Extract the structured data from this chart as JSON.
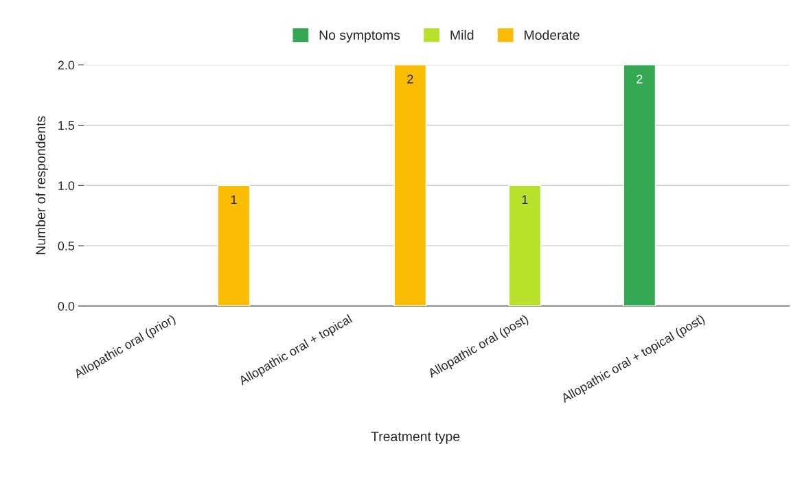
{
  "chart_data": {
    "type": "bar",
    "xlabel": "Treatment type",
    "ylabel": "Number of respondents",
    "categories": [
      "Allopathic oral (prior)",
      "Allopathic oral + topical",
      "Allopathic oral (post)",
      "Allopathic oral + topical (post)"
    ],
    "series": [
      {
        "name": "No symptoms",
        "color": "#34a853",
        "values": [
          null,
          null,
          null,
          2
        ]
      },
      {
        "name": "Mild",
        "color": "#b7e12b",
        "values": [
          null,
          null,
          1,
          null
        ]
      },
      {
        "name": "Moderate",
        "color": "#fbbc04",
        "values": [
          1,
          2,
          null,
          null
        ]
      }
    ],
    "ylim": [
      0,
      2
    ],
    "yticks": [
      {
        "value": 0,
        "label": "0.0"
      },
      {
        "value": 0.5,
        "label": "0.5"
      },
      {
        "value": 1,
        "label": "1.0"
      },
      {
        "value": 1.5,
        "label": "1.5"
      },
      {
        "value": 2,
        "label": "2.0"
      }
    ],
    "grid": "y",
    "legend": "top",
    "data_labels": true
  }
}
